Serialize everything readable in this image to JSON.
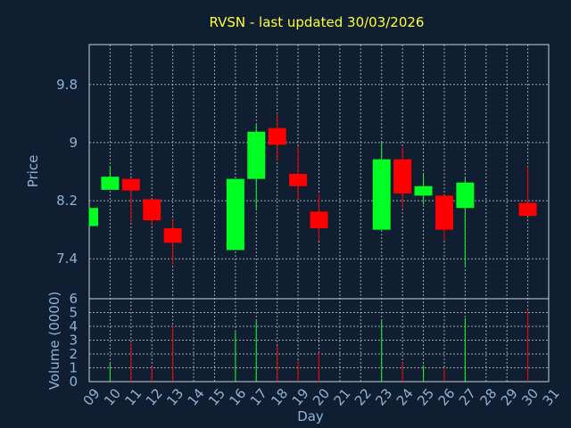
{
  "title": "RVSN - last updated 30/03/2026",
  "colors": {
    "up": "#00ff22",
    "down": "#ff0000",
    "background": "#0f1e30",
    "title": "#ffff33",
    "axis_text": "#8fb3d9",
    "grid": "#c8d2dc"
  },
  "chart_data": {
    "type": "candlestick",
    "title": "RVSN - last updated 30/03/2026",
    "xlabel": "Day",
    "ylabel_price": "Price",
    "ylabel_volume": "Volume (0000)",
    "x_ticks": [
      "09",
      "10",
      "11",
      "12",
      "13",
      "14",
      "15",
      "16",
      "17",
      "18",
      "19",
      "20",
      "21",
      "22",
      "23",
      "24",
      "25",
      "26",
      "27",
      "28",
      "29",
      "30",
      "31"
    ],
    "x_range": [
      9,
      31
    ],
    "price_ylim": [
      6.85,
      10.35
    ],
    "price_ticks": [
      "7.4",
      "8.2",
      "9",
      "9.8"
    ],
    "volume_ylim": [
      0,
      6
    ],
    "volume_ticks": [
      "0",
      "1",
      "2",
      "3",
      "4",
      "5",
      "6"
    ],
    "grid": true,
    "candles": [
      {
        "day": 9,
        "open": 7.85,
        "close": 8.1,
        "high": 8.1,
        "low": 7.85,
        "volume": 0.0
      },
      {
        "day": 10,
        "open": 8.35,
        "close": 8.53,
        "high": 8.68,
        "low": 8.35,
        "volume": 1.3
      },
      {
        "day": 11,
        "open": 8.5,
        "close": 8.34,
        "high": 8.5,
        "low": 7.9,
        "volume": 2.8
      },
      {
        "day": 12,
        "open": 8.22,
        "close": 7.93,
        "high": 8.22,
        "low": 7.85,
        "volume": 1.1
      },
      {
        "day": 13,
        "open": 7.82,
        "close": 7.62,
        "high": 7.95,
        "low": 7.32,
        "volume": 4.0
      },
      {
        "day": 16,
        "open": 7.52,
        "close": 8.5,
        "high": 8.5,
        "low": 7.52,
        "volume": 3.6
      },
      {
        "day": 17,
        "open": 8.5,
        "close": 9.15,
        "high": 9.25,
        "low": 8.08,
        "volume": 4.4
      },
      {
        "day": 18,
        "open": 9.2,
        "close": 8.97,
        "high": 9.4,
        "low": 8.75,
        "volume": 2.6
      },
      {
        "day": 19,
        "open": 8.57,
        "close": 8.4,
        "high": 8.95,
        "low": 8.22,
        "volume": 1.5
      },
      {
        "day": 20,
        "open": 8.05,
        "close": 7.82,
        "high": 8.3,
        "low": 7.65,
        "volume": 2.1
      },
      {
        "day": 23,
        "open": 7.8,
        "close": 8.77,
        "high": 9.02,
        "low": 7.8,
        "volume": 4.4
      },
      {
        "day": 24,
        "open": 8.77,
        "close": 8.3,
        "high": 8.93,
        "low": 8.1,
        "volume": 1.4
      },
      {
        "day": 25,
        "open": 8.27,
        "close": 8.4,
        "high": 8.57,
        "low": 8.15,
        "volume": 1.2
      },
      {
        "day": 26,
        "open": 8.27,
        "close": 7.8,
        "high": 8.27,
        "low": 7.65,
        "volume": 1.0
      },
      {
        "day": 27,
        "open": 8.1,
        "close": 8.45,
        "high": 8.52,
        "low": 7.3,
        "volume": 4.6
      },
      {
        "day": 30,
        "open": 8.17,
        "close": 7.99,
        "high": 8.67,
        "low": 7.99,
        "volume": 5.2
      }
    ]
  }
}
